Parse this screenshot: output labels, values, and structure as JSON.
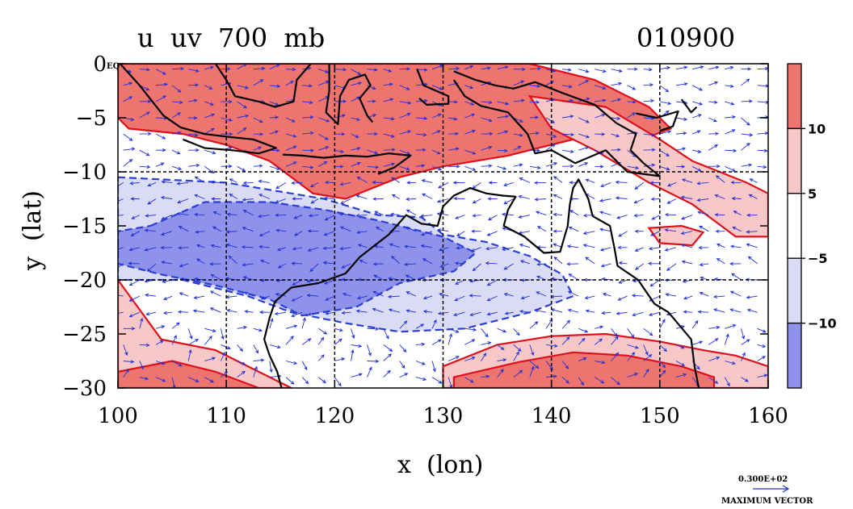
{
  "chart_data": {
    "type": "contour",
    "title_left": "u  uv  700  mb",
    "title_right": "010900",
    "xlabel": "x  (lon)",
    "ylabel": "y  (lat)",
    "xlim": [
      100,
      160
    ],
    "ylim": [
      -30,
      0
    ],
    "x_ticks": [
      100,
      110,
      120,
      130,
      140,
      150,
      160
    ],
    "x_tick_labels": [
      "100",
      "110",
      "120",
      "130",
      "140",
      "150",
      "160"
    ],
    "y_ticks": [
      0,
      -5,
      -10,
      -15,
      -20,
      -25,
      -30
    ],
    "y_tick_labels": [
      "0",
      "−5",
      "−10",
      "−15",
      "−20",
      "−25",
      "−30"
    ],
    "eq_label": "EQ",
    "grid_lon": [
      110,
      120,
      130,
      140,
      150
    ],
    "grid_lat": [
      -10,
      -20
    ],
    "colorbar": {
      "levels": [
        10,
        5,
        -5,
        -10
      ],
      "labels": [
        "10",
        "5",
        "−5",
        "−10"
      ],
      "colors": [
        "#ee7470",
        "#f8c8c8",
        "#ffffff",
        "#dadcf6",
        "#8f92ea"
      ]
    },
    "positive_regions": [
      {
        "level": 10,
        "points": [
          [
            100,
            0
          ],
          [
            108,
            0
          ],
          [
            118,
            0
          ],
          [
            128,
            0
          ],
          [
            138,
            0
          ],
          [
            144,
            -1.5
          ],
          [
            149,
            -4
          ],
          [
            151,
            -6
          ],
          [
            147,
            -7.5
          ],
          [
            142,
            -7
          ],
          [
            136,
            -8.5
          ],
          [
            130,
            -9.5
          ],
          [
            126,
            -10.5
          ],
          [
            121,
            -12.5
          ],
          [
            118,
            -12
          ],
          [
            114,
            -9
          ],
          [
            110,
            -7.5
          ],
          [
            106,
            -6.5
          ],
          [
            101,
            -6
          ],
          [
            100,
            -5
          ]
        ]
      },
      {
        "level": 5,
        "points": [
          [
            138,
            -3
          ],
          [
            145,
            -4
          ],
          [
            150,
            -7
          ],
          [
            153,
            -9
          ],
          [
            158,
            -11
          ],
          [
            160,
            -12
          ],
          [
            160,
            -16
          ],
          [
            157,
            -16
          ],
          [
            153,
            -13
          ],
          [
            149,
            -11
          ],
          [
            144,
            -8
          ],
          [
            140,
            -6
          ]
        ]
      },
      {
        "level": 5,
        "points": [
          [
            100,
            -20
          ],
          [
            104,
            -25.5
          ],
          [
            109,
            -26.5
          ],
          [
            113,
            -28.5
          ],
          [
            116,
            -30
          ],
          [
            100,
            -30
          ]
        ]
      },
      {
        "level": 10,
        "points": [
          [
            100,
            -28.5
          ],
          [
            105,
            -27.5
          ],
          [
            109,
            -28.5
          ],
          [
            113,
            -30
          ],
          [
            100,
            -30
          ]
        ]
      },
      {
        "level": 5,
        "points": [
          [
            130,
            -28
          ],
          [
            135,
            -26
          ],
          [
            140,
            -25.2
          ],
          [
            145,
            -25
          ],
          [
            150,
            -25.7
          ],
          [
            154,
            -26.5
          ],
          [
            157,
            -27
          ],
          [
            160,
            -28
          ],
          [
            160,
            -30
          ],
          [
            130,
            -30
          ]
        ]
      },
      {
        "level": 10,
        "points": [
          [
            131,
            -29
          ],
          [
            137,
            -27.6
          ],
          [
            142,
            -26.7
          ],
          [
            147,
            -27
          ],
          [
            152,
            -28
          ],
          [
            155,
            -29
          ],
          [
            155,
            -30
          ],
          [
            131,
            -30
          ]
        ]
      },
      {
        "level": 5,
        "points": [
          [
            149,
            -15.2
          ],
          [
            152,
            -15
          ],
          [
            154,
            -15.6
          ],
          [
            153,
            -16.8
          ],
          [
            150,
            -16.6
          ]
        ]
      }
    ],
    "negative_regions": [
      {
        "level": -5,
        "points": [
          [
            100,
            -10.5
          ],
          [
            110,
            -11
          ],
          [
            119,
            -12.5
          ],
          [
            124,
            -14
          ],
          [
            128,
            -14.2
          ],
          [
            130,
            -15.8
          ],
          [
            134,
            -16.5
          ],
          [
            138,
            -17.8
          ],
          [
            141,
            -19.5
          ],
          [
            142,
            -21.5
          ],
          [
            138,
            -23
          ],
          [
            132,
            -24.5
          ],
          [
            126,
            -24.8
          ],
          [
            121,
            -24
          ],
          [
            116,
            -23
          ],
          [
            112,
            -21.5
          ],
          [
            106,
            -20
          ],
          [
            100,
            -20
          ]
        ]
      },
      {
        "level": -10,
        "points": [
          [
            103,
            -15
          ],
          [
            108,
            -12.8
          ],
          [
            114,
            -12.8
          ],
          [
            119,
            -13.5
          ],
          [
            124,
            -14.5
          ],
          [
            130,
            -16
          ],
          [
            133,
            -17.5
          ],
          [
            131,
            -19.2
          ],
          [
            126,
            -20.3
          ],
          [
            122,
            -22.5
          ],
          [
            117,
            -23.3
          ],
          [
            114,
            -21.8
          ],
          [
            109,
            -20.5
          ],
          [
            104,
            -19.5
          ],
          [
            100,
            -18.5
          ],
          [
            100,
            -15.5
          ]
        ]
      }
    ],
    "coastlines": [
      [
        [
          114.5,
          -22
        ],
        [
          116,
          -20.7
        ],
        [
          118.5,
          -20.3
        ],
        [
          121,
          -19.4
        ],
        [
          122.3,
          -17.9
        ],
        [
          123.7,
          -16.8
        ],
        [
          125,
          -15.8
        ],
        [
          126.6,
          -14
        ],
        [
          128,
          -14.8
        ],
        [
          129.5,
          -15
        ],
        [
          130,
          -13.2
        ],
        [
          131,
          -12.2
        ],
        [
          132.5,
          -11.5
        ],
        [
          134,
          -12
        ],
        [
          135.5,
          -12.2
        ],
        [
          136.7,
          -12.3
        ],
        [
          136,
          -13.5
        ],
        [
          135.6,
          -15
        ],
        [
          137.5,
          -16
        ],
        [
          139.3,
          -17.5
        ],
        [
          140.8,
          -17.4
        ],
        [
          141.5,
          -15
        ],
        [
          141.7,
          -13
        ],
        [
          142,
          -11.5
        ],
        [
          142.5,
          -10.7
        ],
        [
          143.4,
          -12.5
        ],
        [
          143.8,
          -14.1
        ],
        [
          145.4,
          -15
        ],
        [
          145.8,
          -17
        ],
        [
          146.1,
          -18.7
        ],
        [
          148,
          -20
        ],
        [
          149.5,
          -22.2
        ],
        [
          150.8,
          -23
        ],
        [
          152.9,
          -25.5
        ],
        [
          153.2,
          -28
        ],
        [
          153.6,
          -30
        ]
      ],
      [
        [
          114.5,
          -22
        ],
        [
          114,
          -23.5
        ],
        [
          113.5,
          -25.5
        ],
        [
          114,
          -27
        ],
        [
          114.7,
          -28.5
        ],
        [
          115.1,
          -30
        ]
      ],
      [
        [
          100.2,
          0
        ],
        [
          102,
          -2
        ],
        [
          104.2,
          -4.8
        ],
        [
          105.8,
          -5.9
        ]
      ],
      [
        [
          105.8,
          -5.9
        ],
        [
          108,
          -6.5
        ],
        [
          110.5,
          -6.8
        ],
        [
          112.5,
          -7
        ],
        [
          114.6,
          -7.8
        ],
        [
          113,
          -8.3
        ],
        [
          110.5,
          -8
        ],
        [
          108,
          -7.8
        ],
        [
          106,
          -7
        ]
      ],
      [
        [
          115.2,
          -8.4
        ],
        [
          117,
          -8.5
        ],
        [
          119,
          -8.7
        ],
        [
          121,
          -8.5
        ],
        [
          123,
          -8.6
        ],
        [
          125,
          -8.3
        ],
        [
          127,
          -8.5
        ],
        [
          125.5,
          -9.6
        ],
        [
          124,
          -10.2
        ]
      ],
      [
        [
          109,
          0
        ],
        [
          110,
          -1.5
        ],
        [
          110.8,
          -3
        ],
        [
          113,
          -3.5
        ],
        [
          114.5,
          -4
        ],
        [
          116.2,
          -3.5
        ],
        [
          116.5,
          -1.5
        ],
        [
          117.8,
          0
        ]
      ],
      [
        [
          119.5,
          0
        ],
        [
          119.5,
          -2.5
        ],
        [
          119.2,
          -4.5
        ],
        [
          120.3,
          -5.6
        ],
        [
          120.5,
          -3
        ],
        [
          121.3,
          -1.5
        ],
        [
          122.8,
          -1
        ],
        [
          123.3,
          -2
        ],
        [
          122.3,
          -3.2
        ],
        [
          123,
          -4.8
        ],
        [
          123.5,
          -5.4
        ]
      ],
      [
        [
          127.6,
          -0.5
        ],
        [
          128.2,
          -2
        ],
        [
          130.5,
          -3
        ],
        [
          130.5,
          -3.7
        ],
        [
          128.5,
          -3.8
        ],
        [
          127.8,
          -3.2
        ]
      ],
      [
        [
          131,
          -0.7
        ],
        [
          133,
          -1.5
        ],
        [
          134.8,
          -2
        ],
        [
          136.5,
          -2.3
        ],
        [
          138.5,
          -1.7
        ],
        [
          141,
          -2.7
        ],
        [
          144,
          -3.8
        ],
        [
          146,
          -5.5
        ],
        [
          147.8,
          -6.5
        ],
        [
          147.3,
          -8
        ],
        [
          148.5,
          -9.2
        ],
        [
          150,
          -10.4
        ],
        [
          147,
          -10
        ],
        [
          145,
          -8
        ],
        [
          142.2,
          -9.2
        ],
        [
          140,
          -8
        ],
        [
          138.5,
          -8.3
        ],
        [
          137.8,
          -6.5
        ],
        [
          136,
          -4.5
        ],
        [
          133.5,
          -3.9
        ],
        [
          132,
          -3
        ],
        [
          131,
          -1.5
        ]
      ],
      [
        [
          147.8,
          -4.6
        ],
        [
          149.7,
          -5
        ],
        [
          151.7,
          -4.4
        ],
        [
          151.2,
          -5.8
        ],
        [
          150,
          -6.2
        ]
      ],
      [
        [
          152,
          -3.3
        ],
        [
          152.9,
          -4.5
        ],
        [
          153.4,
          -4
        ]
      ]
    ],
    "vector_reference": {
      "magnitude_label": "0.300E+02",
      "caption": "MAXIMUM VECTOR"
    }
  }
}
